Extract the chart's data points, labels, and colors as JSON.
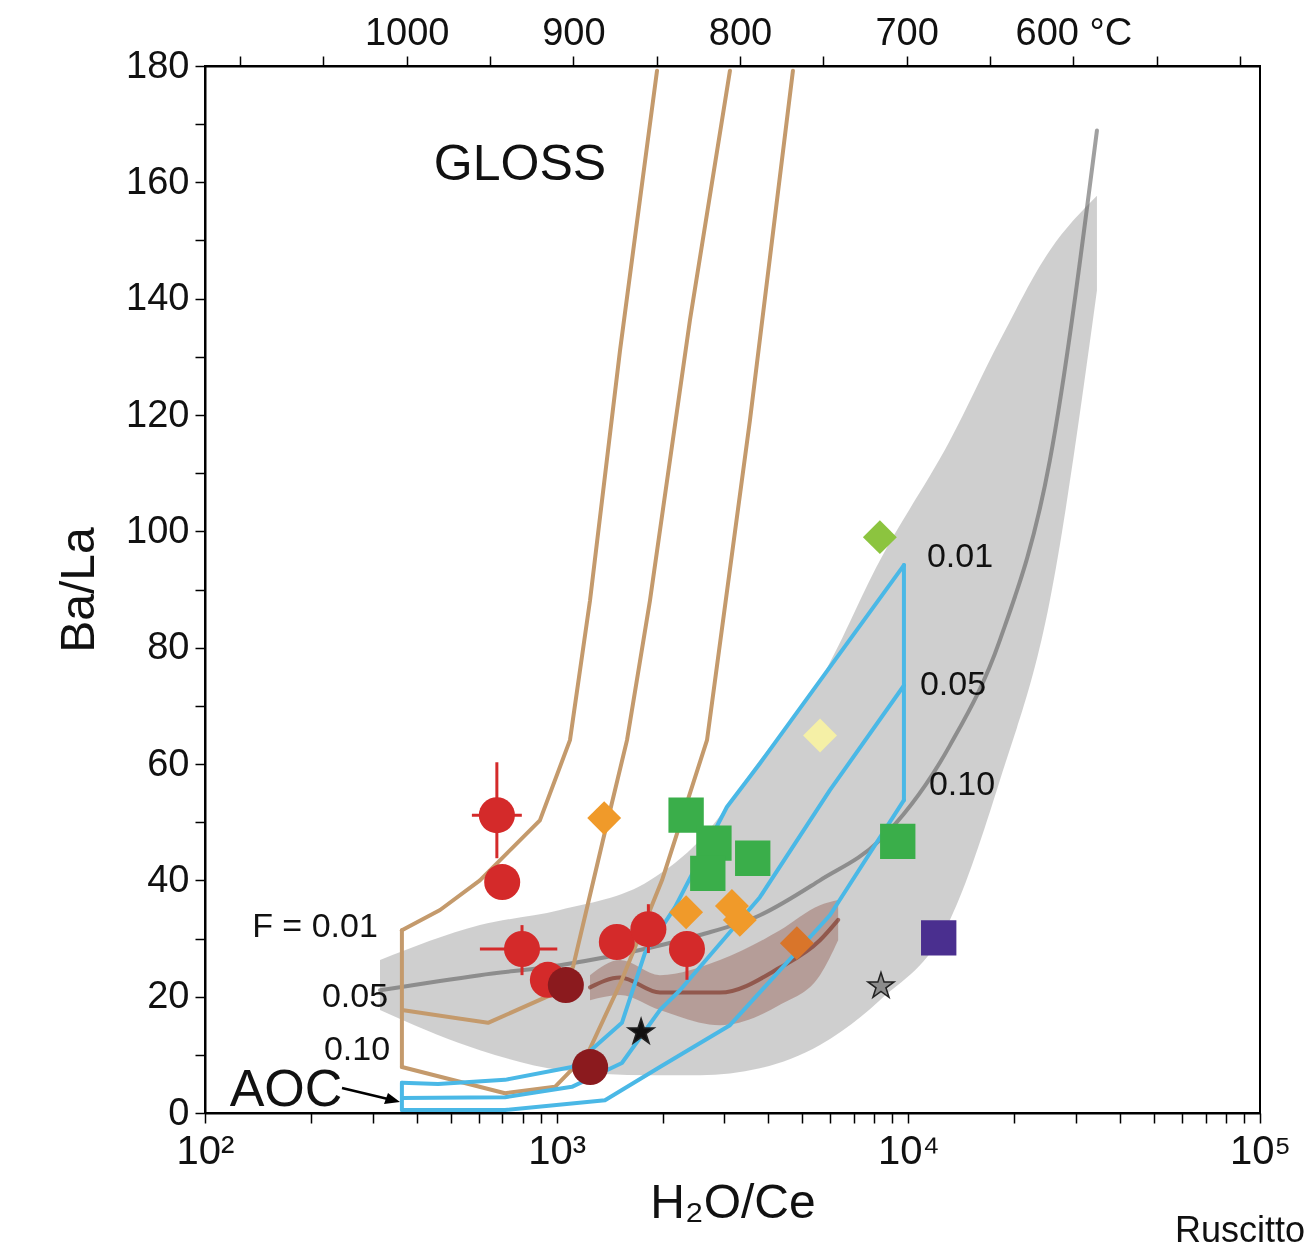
{
  "chart_data": {
    "type": "scatter",
    "xlabel": "H₂O/Ce",
    "ylabel": "Ba/La",
    "log": "x",
    "xlim": [
      100,
      100000
    ],
    "xticks": [
      {
        "value": 100,
        "label": "10²"
      },
      {
        "value": 200,
        "label": null
      },
      {
        "value": 300,
        "label": null
      },
      {
        "value": 400,
        "label": null
      },
      {
        "value": 500,
        "label": null
      },
      {
        "value": 600,
        "label": null
      },
      {
        "value": 700,
        "label": null
      },
      {
        "value": 800,
        "label": null
      },
      {
        "value": 900,
        "label": null
      },
      {
        "value": 1000,
        "label": "10³"
      },
      {
        "value": 2000,
        "label": null
      },
      {
        "value": 3000,
        "label": null
      },
      {
        "value": 4000,
        "label": null
      },
      {
        "value": 5000,
        "label": null
      },
      {
        "value": 6000,
        "label": null
      },
      {
        "value": 7000,
        "label": null
      },
      {
        "value": 8000,
        "label": null
      },
      {
        "value": 9000,
        "label": null
      },
      {
        "value": 10000,
        "label": "10⁴"
      },
      {
        "value": 20000,
        "label": null
      },
      {
        "value": 30000,
        "label": null
      },
      {
        "value": 40000,
        "label": null
      },
      {
        "value": 50000,
        "label": null
      },
      {
        "value": 60000,
        "label": null
      },
      {
        "value": 70000,
        "label": null
      },
      {
        "value": 80000,
        "label": null
      },
      {
        "value": 90000,
        "label": null
      },
      {
        "value": 100000,
        "label": "10⁵"
      }
    ],
    "ylim": [
      0,
      180
    ],
    "yticks": [
      0,
      {
        "value": 10,
        "label": null
      },
      20,
      {
        "value": 30,
        "label": null
      },
      40,
      {
        "value": 50,
        "label": null
      },
      60,
      {
        "value": 70,
        "label": null
      },
      80,
      {
        "value": 90,
        "label": null
      },
      100,
      {
        "value": 110,
        "label": null
      },
      120,
      {
        "value": 130,
        "label": null
      },
      140,
      {
        "value": 150,
        "label": null
      },
      160,
      {
        "value": 170,
        "label": null
      },
      180
    ],
    "x2lim": [
      1121,
      488
    ],
    "x2ticks": [
      {
        "value": 1100,
        "label": null
      },
      {
        "value": 1050,
        "label": null
      },
      1000,
      {
        "value": 950,
        "label": null
      },
      900,
      {
        "value": 850,
        "label": null
      },
      800,
      {
        "value": 750,
        "label": null
      },
      700,
      {
        "value": 650,
        "label": null
      },
      {
        "value": 600,
        "label": "600 °C"
      },
      {
        "value": 550,
        "label": null
      },
      {
        "value": 500,
        "label": null
      }
    ],
    "series": [
      {
        "type": "line",
        "color": "#606060",
        "x": [
          314.5,
          605,
          1022,
          1842,
          2555,
          3784,
          5607,
          8300,
          13130,
          18210,
          25260,
          34380
        ],
        "values": [
          21.1,
          23.7,
          25.4,
          28.4,
          30.6,
          34.0,
          40.0,
          46.9,
          63.2,
          81.3,
          112.2,
          168.9
        ],
        "lower": [
          17.7,
          10.8,
          7.4,
          6.5,
          6.5,
          7.7,
          11.7,
          19.4,
          33.2,
          57.2,
          88.1,
          141.4
        ],
        "upper": [
          26.3,
          32.3,
          34.9,
          40.0,
          46.9,
          60.7,
          74.4,
          95.0,
          115.6,
          132.8,
          148.3,
          157.7
        ]
      },
      {
        "type": "line",
        "color": "#7a2a1a",
        "x": [
          1244,
          1514,
          1966,
          2913,
          4315,
          5607,
          6316
        ],
        "values": [
          21.6,
          23.3,
          20.7,
          20.7,
          25.0,
          29.7,
          33.2
        ],
        "lower": [
          19.4,
          20.3,
          17.7,
          15.1,
          18.6,
          23.7,
          29.7
        ],
        "upper": [
          23.7,
          26.3,
          23.7,
          26.3,
          31.4,
          35.7,
          36.6
        ]
      },
      {
        "type": "line",
        "color": "#c49a6c",
        "x": [
          363,
          466,
          605,
          896,
          1091,
          1244,
          1514,
          1929
        ],
        "values": [
          31.4,
          34.9,
          40.0,
          50.3,
          64.1,
          88.1,
          131.1,
          179.2
        ]
      },
      {
        "type": "line",
        "color": "#c49a6c",
        "x": [
          363,
          638,
          989,
          1113,
          1354,
          1585,
          1842,
          2393,
          3110
        ],
        "values": [
          17.7,
          15.5,
          20.6,
          25.1,
          46.9,
          64.1,
          88.1,
          136.3,
          179.2
        ]
      },
      {
        "type": "line",
        "color": "#c49a6c",
        "x": [
          363,
          713,
          989,
          1227,
          1533,
          1993,
          2676,
          3545,
          4697
        ],
        "values": [
          7.9,
          3.4,
          4.5,
          10.3,
          22.9,
          40.0,
          64.1,
          119.1,
          179.2
        ]
      },
      {
        "type": "line",
        "color": "#c49a6c",
        "x": [
          363,
          363
        ],
        "values": [
          31.4,
          7.9
        ]
      },
      {
        "type": "line",
        "color": "#4ab8e6",
        "x": [
          363,
          460,
          713,
          1105,
          1533,
          1782,
          2171,
          3048,
          3784,
          9716
        ],
        "values": [
          5.2,
          5.0,
          5.7,
          7.9,
          15.5,
          27.5,
          35.4,
          52.6,
          60.1,
          94.2
        ]
      },
      {
        "type": "line",
        "color": "#4ab8e6",
        "x": [
          363,
          713,
          1105,
          1533,
          1966,
          2242,
          3784,
          5984,
          9716
        ],
        "values": [
          2.6,
          2.7,
          4.5,
          8.6,
          17.7,
          21.1,
          37.1,
          55.5,
          73.5
        ]
      },
      {
        "type": "line",
        "color": "#4ab8e6",
        "x": [
          363,
          713,
          1372,
          1966,
          3110,
          5984,
          9716
        ],
        "values": [
          0.5,
          0.5,
          2.2,
          7.9,
          15.1,
          34.0,
          53.8
        ]
      },
      {
        "type": "line",
        "color": "#4ab8e6",
        "x": [
          363,
          363
        ],
        "values": [
          5.2,
          0.5
        ]
      },
      {
        "type": "line",
        "color": "#4ab8e6",
        "x": [
          9716,
          9716
        ],
        "values": [
          94.2,
          53.8
        ]
      },
      {
        "marker": "square",
        "color": "#3aae4a",
        "x": [
          2334,
          2800,
          2690,
          3610,
          9330
        ],
        "values": [
          51.2,
          46.4,
          41.2,
          43.8,
          46.7
        ]
      },
      {
        "marker": "circle",
        "color": "#d42a2a",
        "x": [
          676,
          700,
          797,
          944,
          1483,
          1823,
          2347
        ],
        "values": [
          51.2,
          39.7,
          28.2,
          22.9,
          29.4,
          31.6,
          28.2
        ],
        "errors": [
          [
            43.8,
            60.3
          ],
          null,
          [
            23.7,
            32.3
          ],
          null,
          null,
          [
            27.5,
            35.9
          ],
          [
            22.9,
            28.2
          ]
        ],
        "xerrors": [
          [
            574,
            796
          ],
          null,
          [
            605,
            1004
          ],
          null,
          null,
          null,
          null
        ]
      },
      {
        "marker": "circle",
        "color": "#8b1a1e",
        "x": [
          1062,
          1245
        ],
        "values": [
          22.0,
          7.9
        ]
      },
      {
        "marker": "diamond",
        "color": "#f09a2a",
        "x": [
          1365,
          2334,
          3150,
          3318
        ],
        "values": [
          50.7,
          34.5,
          35.6,
          33.2
        ]
      },
      {
        "marker": "diamond",
        "color": "#d9752a",
        "x": [
          4820
        ],
        "values": [
          29.2
        ]
      },
      {
        "marker": "diamond",
        "color": "#8cc43f",
        "x": [
          8300
        ],
        "values": [
          99.0
        ]
      },
      {
        "marker": "diamond",
        "color": "#f5f0a6",
        "x": [
          5610
        ],
        "values": [
          64.9
        ]
      },
      {
        "marker": "square",
        "color": "#4a2f8f",
        "x": [
          12200
        ],
        "values": [
          30.1
        ]
      },
      {
        "marker": "star",
        "color": "#111111",
        "x": [
          1738
        ],
        "values": [
          13.9
        ]
      },
      {
        "marker": "star",
        "color": "#8c8c8c",
        "x": [
          8360
        ],
        "values": [
          21.8
        ]
      }
    ],
    "annotations": [
      "GLOSS",
      "AOC",
      "F = 0.01",
      "0.05",
      "0.10",
      "0.01",
      "0.05",
      "0.10",
      "Ruscitto"
    ]
  }
}
